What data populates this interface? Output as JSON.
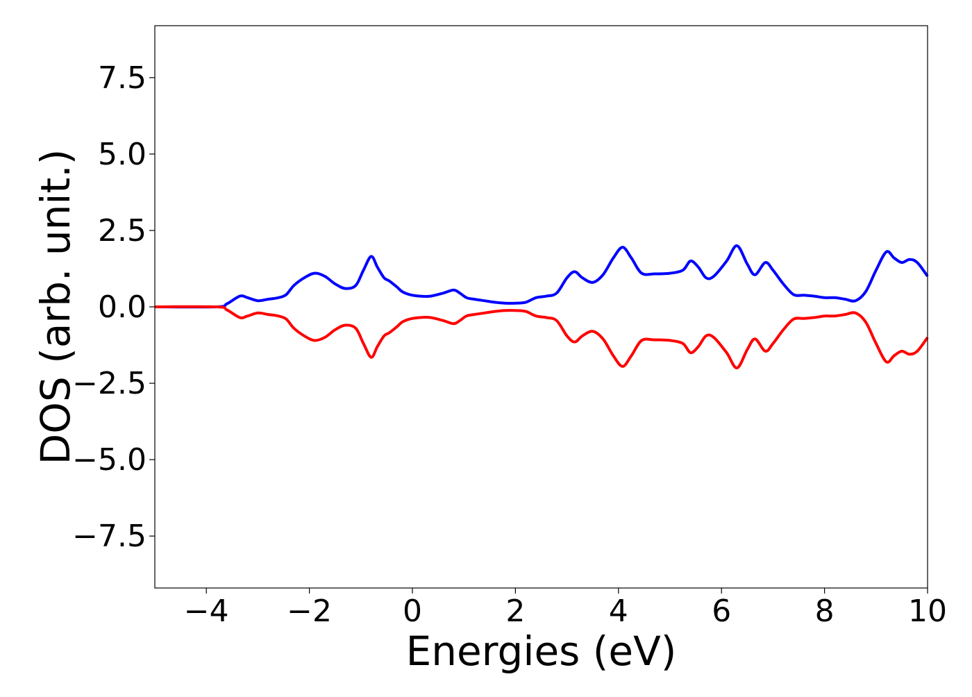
{
  "chart_data": {
    "type": "line",
    "title": "",
    "xlabel": "Energies (eV)",
    "ylabel": "DOS (arb. unit.)",
    "xlim": [
      -5,
      10
    ],
    "ylim": [
      -9.2,
      9.2
    ],
    "xticks": [
      -4,
      -2,
      0,
      2,
      4,
      6,
      8,
      10
    ],
    "xtick_labels": [
      "−4",
      "−2",
      "0",
      "2",
      "4",
      "6",
      "8",
      "10"
    ],
    "yticks": [
      7.5,
      5.0,
      2.5,
      0.0,
      -2.5,
      -5.0,
      -7.5
    ],
    "ytick_labels": [
      "7.5",
      "5.0",
      "2.5",
      "0.0",
      "−2.5",
      "−5.0",
      "−7.5"
    ],
    "grid": false,
    "series": [
      {
        "color": "#0000ff",
        "x": [
          -5,
          -3.8,
          -3.6,
          -3.35,
          -3.2,
          -3.0,
          -2.8,
          -2.6,
          -2.45,
          -2.3,
          -2.1,
          -1.9,
          -1.7,
          -1.5,
          -1.3,
          -1.1,
          -0.95,
          -0.8,
          -0.68,
          -0.55,
          -0.45,
          -0.3,
          -0.2,
          -0.05,
          0.15,
          0.35,
          0.6,
          0.8,
          0.92,
          1.05,
          1.2,
          1.4,
          1.6,
          1.8,
          2.0,
          2.2,
          2.4,
          2.6,
          2.8,
          3.0,
          3.15,
          3.3,
          3.5,
          3.7,
          3.9,
          4.08,
          4.25,
          4.45,
          4.7,
          5.0,
          5.25,
          5.4,
          5.55,
          5.7,
          5.85,
          6.1,
          6.3,
          6.5,
          6.65,
          6.85,
          7.0,
          7.2,
          7.4,
          7.6,
          7.8,
          8.0,
          8.2,
          8.4,
          8.6,
          8.8,
          9.0,
          9.2,
          9.35,
          9.5,
          9.65,
          9.8,
          10.0
        ],
        "values": [
          0.0,
          0.0,
          0.1,
          0.35,
          0.3,
          0.2,
          0.25,
          0.3,
          0.4,
          0.7,
          0.95,
          1.1,
          1.0,
          0.75,
          0.6,
          0.7,
          1.2,
          1.65,
          1.3,
          0.95,
          0.85,
          0.65,
          0.5,
          0.4,
          0.35,
          0.35,
          0.45,
          0.55,
          0.45,
          0.3,
          0.25,
          0.2,
          0.15,
          0.12,
          0.12,
          0.15,
          0.3,
          0.35,
          0.45,
          0.95,
          1.15,
          0.95,
          0.8,
          1.05,
          1.6,
          1.95,
          1.6,
          1.1,
          1.08,
          1.1,
          1.2,
          1.5,
          1.3,
          0.95,
          1.0,
          1.5,
          2.0,
          1.4,
          1.05,
          1.45,
          1.2,
          0.75,
          0.4,
          0.38,
          0.35,
          0.3,
          0.3,
          0.25,
          0.2,
          0.5,
          1.2,
          1.8,
          1.6,
          1.45,
          1.55,
          1.45,
          1.0
        ]
      },
      {
        "color": "#ff0000",
        "x": [
          -5,
          -3.8,
          -3.6,
          -3.35,
          -3.2,
          -3.0,
          -2.8,
          -2.6,
          -2.45,
          -2.3,
          -2.1,
          -1.9,
          -1.7,
          -1.5,
          -1.3,
          -1.1,
          -0.95,
          -0.8,
          -0.68,
          -0.55,
          -0.45,
          -0.3,
          -0.2,
          -0.05,
          0.15,
          0.35,
          0.6,
          0.8,
          0.92,
          1.05,
          1.2,
          1.4,
          1.6,
          1.8,
          2.0,
          2.2,
          2.4,
          2.6,
          2.8,
          3.0,
          3.15,
          3.3,
          3.5,
          3.7,
          3.9,
          4.08,
          4.25,
          4.45,
          4.7,
          5.0,
          5.25,
          5.4,
          5.55,
          5.7,
          5.85,
          6.1,
          6.3,
          6.5,
          6.65,
          6.85,
          7.0,
          7.2,
          7.4,
          7.6,
          7.8,
          8.0,
          8.2,
          8.4,
          8.6,
          8.8,
          9.0,
          9.2,
          9.35,
          9.5,
          9.65,
          9.8,
          10.0
        ],
        "values": [
          0.0,
          0.0,
          -0.1,
          -0.35,
          -0.3,
          -0.2,
          -0.25,
          -0.3,
          -0.4,
          -0.7,
          -0.95,
          -1.1,
          -1.0,
          -0.75,
          -0.6,
          -0.7,
          -1.2,
          -1.65,
          -1.3,
          -0.95,
          -0.85,
          -0.65,
          -0.5,
          -0.4,
          -0.35,
          -0.35,
          -0.45,
          -0.55,
          -0.45,
          -0.3,
          -0.25,
          -0.2,
          -0.15,
          -0.12,
          -0.12,
          -0.15,
          -0.3,
          -0.35,
          -0.45,
          -0.95,
          -1.15,
          -0.95,
          -0.8,
          -1.05,
          -1.6,
          -1.95,
          -1.6,
          -1.1,
          -1.08,
          -1.1,
          -1.2,
          -1.5,
          -1.3,
          -0.95,
          -1.0,
          -1.5,
          -2.0,
          -1.4,
          -1.05,
          -1.45,
          -1.2,
          -0.75,
          -0.4,
          -0.38,
          -0.35,
          -0.3,
          -0.3,
          -0.25,
          -0.2,
          -0.5,
          -1.2,
          -1.8,
          -1.6,
          -1.45,
          -1.55,
          -1.45,
          -1.0
        ]
      }
    ]
  }
}
